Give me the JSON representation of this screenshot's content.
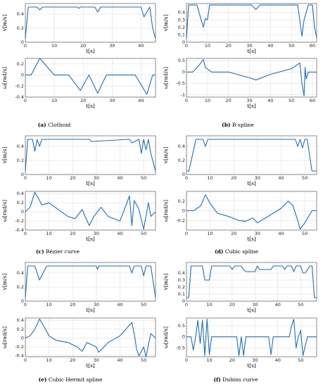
{
  "captions": [
    {
      "letter": "(a)",
      "text": "Clothoid"
    },
    {
      "letter": "(b)",
      "text": "B-spline"
    },
    {
      "letter": "(c)",
      "text": "Bézier curve"
    },
    {
      "letter": "(d)",
      "text": "Cubic spline"
    },
    {
      "letter": "(e)",
      "text": "Cubic Hermit spline"
    },
    {
      "letter": "(f)",
      "text": "Dubins curve"
    }
  ],
  "chart_data": [
    {
      "type": "line",
      "panel": "a",
      "kind": "v",
      "xlabel": "t[s]",
      "ylabel": "v[m/s]",
      "xlim": [
        0,
        45
      ],
      "ylim": [
        0,
        0.55
      ],
      "xticks": [
        0,
        10,
        20,
        30,
        40
      ],
      "yticks": [
        0,
        0.2,
        0.4
      ],
      "color": "#1f6fb4",
      "grid": true,
      "series": [
        {
          "x": [
            0,
            1,
            4,
            5,
            6,
            18,
            18.5,
            19,
            24,
            25,
            26,
            40,
            41,
            43,
            44,
            45
          ],
          "y": [
            0.05,
            0.5,
            0.5,
            0.46,
            0.5,
            0.5,
            0.48,
            0.5,
            0.5,
            0.43,
            0.5,
            0.5,
            0.36,
            0.5,
            0.2,
            0.05
          ]
        }
      ]
    },
    {
      "type": "line",
      "panel": "a",
      "kind": "w",
      "xlabel": "t[s]",
      "ylabel": "ω[rad/s]",
      "xlim": [
        0,
        45
      ],
      "ylim": [
        -0.4,
        0.3
      ],
      "xticks": [
        0,
        10,
        20,
        30,
        40
      ],
      "yticks": [
        -0.4,
        -0.2,
        0,
        0.2
      ],
      "color": "#1f6fb4",
      "grid": true,
      "series": [
        {
          "x": [
            0,
            2,
            5,
            10,
            15,
            19,
            22,
            25,
            28,
            38,
            42,
            44,
            45
          ],
          "y": [
            0,
            0,
            0.3,
            0,
            0,
            -0.28,
            0,
            -0.33,
            0,
            0,
            -0.35,
            0,
            0
          ]
        }
      ]
    },
    {
      "type": "line",
      "panel": "b",
      "kind": "v",
      "xlabel": "t[s]",
      "ylabel": "v[m/s]",
      "xlim": [
        0,
        62
      ],
      "ylim": [
        0,
        0.52
      ],
      "xticks": [
        0,
        10,
        20,
        30,
        40,
        50,
        60
      ],
      "yticks": [
        0,
        0.1,
        0.2,
        0.3,
        0.4
      ],
      "color": "#1f6fb4",
      "grid": true,
      "series": [
        {
          "x": [
            0,
            1,
            5,
            8,
            9,
            10,
            11,
            31,
            33,
            35,
            53,
            55,
            56,
            58,
            60,
            61,
            62
          ],
          "y": [
            0.05,
            0.5,
            0.5,
            0.2,
            0.32,
            0.3,
            0.5,
            0.5,
            0.44,
            0.5,
            0.5,
            0.08,
            0.3,
            0.5,
            0.5,
            0.2,
            0.06
          ]
        }
      ]
    },
    {
      "type": "line",
      "panel": "b",
      "kind": "w",
      "xlabel": "t[s]",
      "ylabel": "ω[rad/s]",
      "xlim": [
        0,
        62
      ],
      "ylim": [
        -1.1,
        0.6
      ],
      "xticks": [
        0,
        10,
        20,
        30,
        40,
        50,
        60
      ],
      "yticks": [
        -1,
        -0.5,
        0,
        0.5
      ],
      "color": "#1f6fb4",
      "grid": true,
      "series": [
        {
          "x": [
            0,
            3,
            6,
            8,
            9,
            12,
            20,
            30,
            33,
            40,
            50,
            54,
            55,
            56,
            56.5,
            57,
            58,
            62
          ],
          "y": [
            0,
            0,
            0.3,
            0.55,
            0.2,
            0,
            0,
            -0.25,
            -0.35,
            -0.1,
            0.15,
            0.4,
            -0.5,
            -1.05,
            0.2,
            -0.3,
            0,
            0
          ]
        }
      ]
    },
    {
      "type": "line",
      "panel": "c",
      "kind": "v",
      "xlabel": "t[s]",
      "ylabel": "v[m/s]",
      "xlim": [
        0,
        55
      ],
      "ylim": [
        0,
        0.55
      ],
      "xticks": [
        0,
        10,
        20,
        30,
        40,
        50
      ],
      "yticks": [
        0,
        0.2,
        0.4
      ],
      "color": "#1f6fb4",
      "grid": true,
      "series": [
        {
          "x": [
            0,
            1,
            3,
            4,
            5,
            6,
            7,
            27,
            28,
            44,
            45,
            48,
            49,
            50,
            51,
            52,
            53,
            55
          ],
          "y": [
            0.05,
            0.5,
            0.5,
            0.33,
            0.5,
            0.4,
            0.5,
            0.5,
            0.47,
            0.5,
            0.45,
            0.5,
            0.3,
            0.5,
            0.35,
            0.5,
            0.3,
            0.05
          ]
        }
      ]
    },
    {
      "type": "line",
      "panel": "c",
      "kind": "w",
      "xlabel": "t[s]",
      "ylabel": "ω[rad/s]",
      "xlim": [
        0,
        55
      ],
      "ylim": [
        -0.4,
        0.45
      ],
      "xticks": [
        0,
        10,
        20,
        30,
        40,
        50
      ],
      "yticks": [
        -0.4,
        -0.2,
        0,
        0.2,
        0.4
      ],
      "color": "#1f6fb4",
      "grid": true,
      "series": [
        {
          "x": [
            0,
            2,
            4,
            6,
            7,
            10,
            14,
            18,
            21,
            24,
            27,
            29,
            32,
            35,
            40,
            44,
            45,
            46,
            48,
            50,
            52,
            53,
            55
          ],
          "y": [
            0,
            0.1,
            0.43,
            0.25,
            0.15,
            0.2,
            0.05,
            -0.1,
            -0.15,
            0.05,
            -0.3,
            -0.1,
            0.1,
            -0.1,
            -0.2,
            0.35,
            -0.3,
            0.25,
            0.05,
            -0.38,
            0.2,
            -0.1,
            0
          ]
        }
      ]
    },
    {
      "type": "line",
      "panel": "d",
      "kind": "v",
      "xlabel": "t[s]",
      "ylabel": "v[m/s]",
      "xlim": [
        0,
        55
      ],
      "ylim": [
        0,
        0.55
      ],
      "xticks": [
        0,
        10,
        20,
        30,
        40,
        50
      ],
      "yticks": [
        0,
        0.2,
        0.4
      ],
      "color": "#1f6fb4",
      "grid": true,
      "series": [
        {
          "x": [
            0,
            1,
            4,
            7,
            8,
            9,
            10,
            46,
            47,
            48,
            49,
            50,
            51,
            53,
            55
          ],
          "y": [
            0.05,
            0.05,
            0.5,
            0.5,
            0.4,
            0.5,
            0.5,
            0.5,
            0.4,
            0.5,
            0.38,
            0.5,
            0.5,
            0.05,
            0.05
          ]
        }
      ]
    },
    {
      "type": "line",
      "panel": "d",
      "kind": "w",
      "xlabel": "t[s]",
      "ylabel": "ω[rad/s]",
      "xlim": [
        0,
        55
      ],
      "ylim": [
        -0.4,
        0.4
      ],
      "xticks": [
        0,
        10,
        20,
        30,
        40,
        50
      ],
      "yticks": [
        -0.2,
        0,
        0.2
      ],
      "color": "#1f6fb4",
      "grid": true,
      "series": [
        {
          "x": [
            0,
            3,
            6,
            8,
            10,
            13,
            18,
            22,
            25,
            28,
            30,
            35,
            40,
            43,
            45,
            47,
            48,
            50,
            53,
            55
          ],
          "y": [
            0,
            0,
            0.1,
            0.33,
            0.15,
            -0.05,
            -0.12,
            -0.2,
            -0.22,
            -0.15,
            -0.25,
            -0.1,
            0.05,
            0.2,
            0.1,
            -0.2,
            -0.38,
            -0.25,
            0,
            0
          ]
        }
      ]
    },
    {
      "type": "line",
      "panel": "e",
      "kind": "v",
      "xlabel": "t[s]",
      "ylabel": "v[m/s]",
      "xlim": [
        0,
        55
      ],
      "ylim": [
        0,
        0.55
      ],
      "xticks": [
        0,
        10,
        20,
        30,
        40,
        50
      ],
      "yticks": [
        0,
        0.2,
        0.4
      ],
      "color": "#1f6fb4",
      "grid": true,
      "series": [
        {
          "x": [
            0,
            1,
            4,
            6,
            9,
            30,
            30.5,
            31,
            44,
            45,
            46,
            49,
            50,
            51,
            53,
            55
          ],
          "y": [
            0.05,
            0.5,
            0.5,
            0.3,
            0.5,
            0.5,
            0.45,
            0.5,
            0.5,
            0.4,
            0.5,
            0.5,
            0.36,
            0.5,
            0.5,
            0.05
          ]
        }
      ]
    },
    {
      "type": "line",
      "panel": "e",
      "kind": "w",
      "xlabel": "t[s]",
      "ylabel": "ω[rad/s]",
      "xlim": [
        0,
        55
      ],
      "ylim": [
        -0.42,
        0.45
      ],
      "xticks": [
        0,
        10,
        20,
        30,
        40,
        50
      ],
      "yticks": [
        -0.4,
        -0.2,
        0,
        0.2,
        0.4
      ],
      "color": "#1f6fb4",
      "grid": true,
      "series": [
        {
          "x": [
            0,
            2,
            4,
            6,
            8,
            10,
            13,
            18,
            22,
            24,
            26,
            30,
            31,
            35,
            40,
            45,
            46,
            47,
            48,
            50,
            51,
            53,
            55
          ],
          "y": [
            0,
            0.05,
            0.2,
            0.43,
            0.25,
            0.05,
            -0.05,
            -0.1,
            -0.2,
            -0.3,
            -0.1,
            -0.2,
            -0.32,
            -0.1,
            0.05,
            0.35,
            0.1,
            -0.25,
            -0.4,
            -0.2,
            -0.42,
            0.1,
            0
          ]
        }
      ]
    },
    {
      "type": "line",
      "panel": "f",
      "kind": "v",
      "xlabel": "t[s]",
      "ylabel": "v[m/s]",
      "xlim": [
        0,
        57
      ],
      "ylim": [
        0,
        0.55
      ],
      "xticks": [
        0,
        10,
        20,
        30,
        40,
        50
      ],
      "yticks": [
        0,
        0.1,
        0.2,
        0.3,
        0.4
      ],
      "color": "#1f6fb4",
      "grid": true,
      "series": [
        {
          "x": [
            0,
            1,
            2,
            3,
            7,
            8,
            10,
            11,
            19,
            20,
            21,
            24,
            25,
            26,
            30,
            31,
            32,
            37,
            38,
            42,
            43,
            44,
            46,
            47,
            48,
            50,
            51,
            52,
            54,
            55,
            56,
            57
          ],
          "y": [
            0.05,
            0.05,
            0.5,
            0.5,
            0.5,
            0.3,
            0.3,
            0.5,
            0.5,
            0.45,
            0.5,
            0.5,
            0.45,
            0.42,
            0.42,
            0.5,
            0.45,
            0.45,
            0.5,
            0.5,
            0.45,
            0.5,
            0.5,
            0.42,
            0.5,
            0.5,
            0.4,
            0.4,
            0.5,
            0.5,
            0.05,
            0.05
          ]
        }
      ]
    },
    {
      "type": "line",
      "panel": "f",
      "kind": "w",
      "xlabel": "t[s]",
      "ylabel": "ω[rad/s]",
      "xlim": [
        0,
        57
      ],
      "ylim": [
        -0.9,
        0.85
      ],
      "xticks": [
        0,
        10,
        20,
        30,
        40,
        50
      ],
      "yticks": [
        -0.5,
        0,
        0.5
      ],
      "color": "#1f6fb4",
      "grid": true,
      "series": [
        {
          "x": [
            0,
            2,
            3,
            4,
            5,
            6,
            7,
            8,
            9,
            10,
            11,
            22,
            23,
            24,
            25,
            26,
            27,
            36,
            37,
            38,
            45,
            46,
            47,
            48,
            49,
            50,
            51,
            52,
            53,
            57
          ],
          "y": [
            0,
            0,
            -0.6,
            0,
            0.75,
            -0.3,
            0.75,
            -0.85,
            0.8,
            -0.8,
            0,
            0,
            -0.85,
            0,
            -0.85,
            0,
            0,
            0,
            -0.8,
            0,
            0,
            0.5,
            0.8,
            -0.5,
            0,
            0.3,
            -0.85,
            -0.4,
            0,
            0
          ]
        }
      ]
    }
  ]
}
